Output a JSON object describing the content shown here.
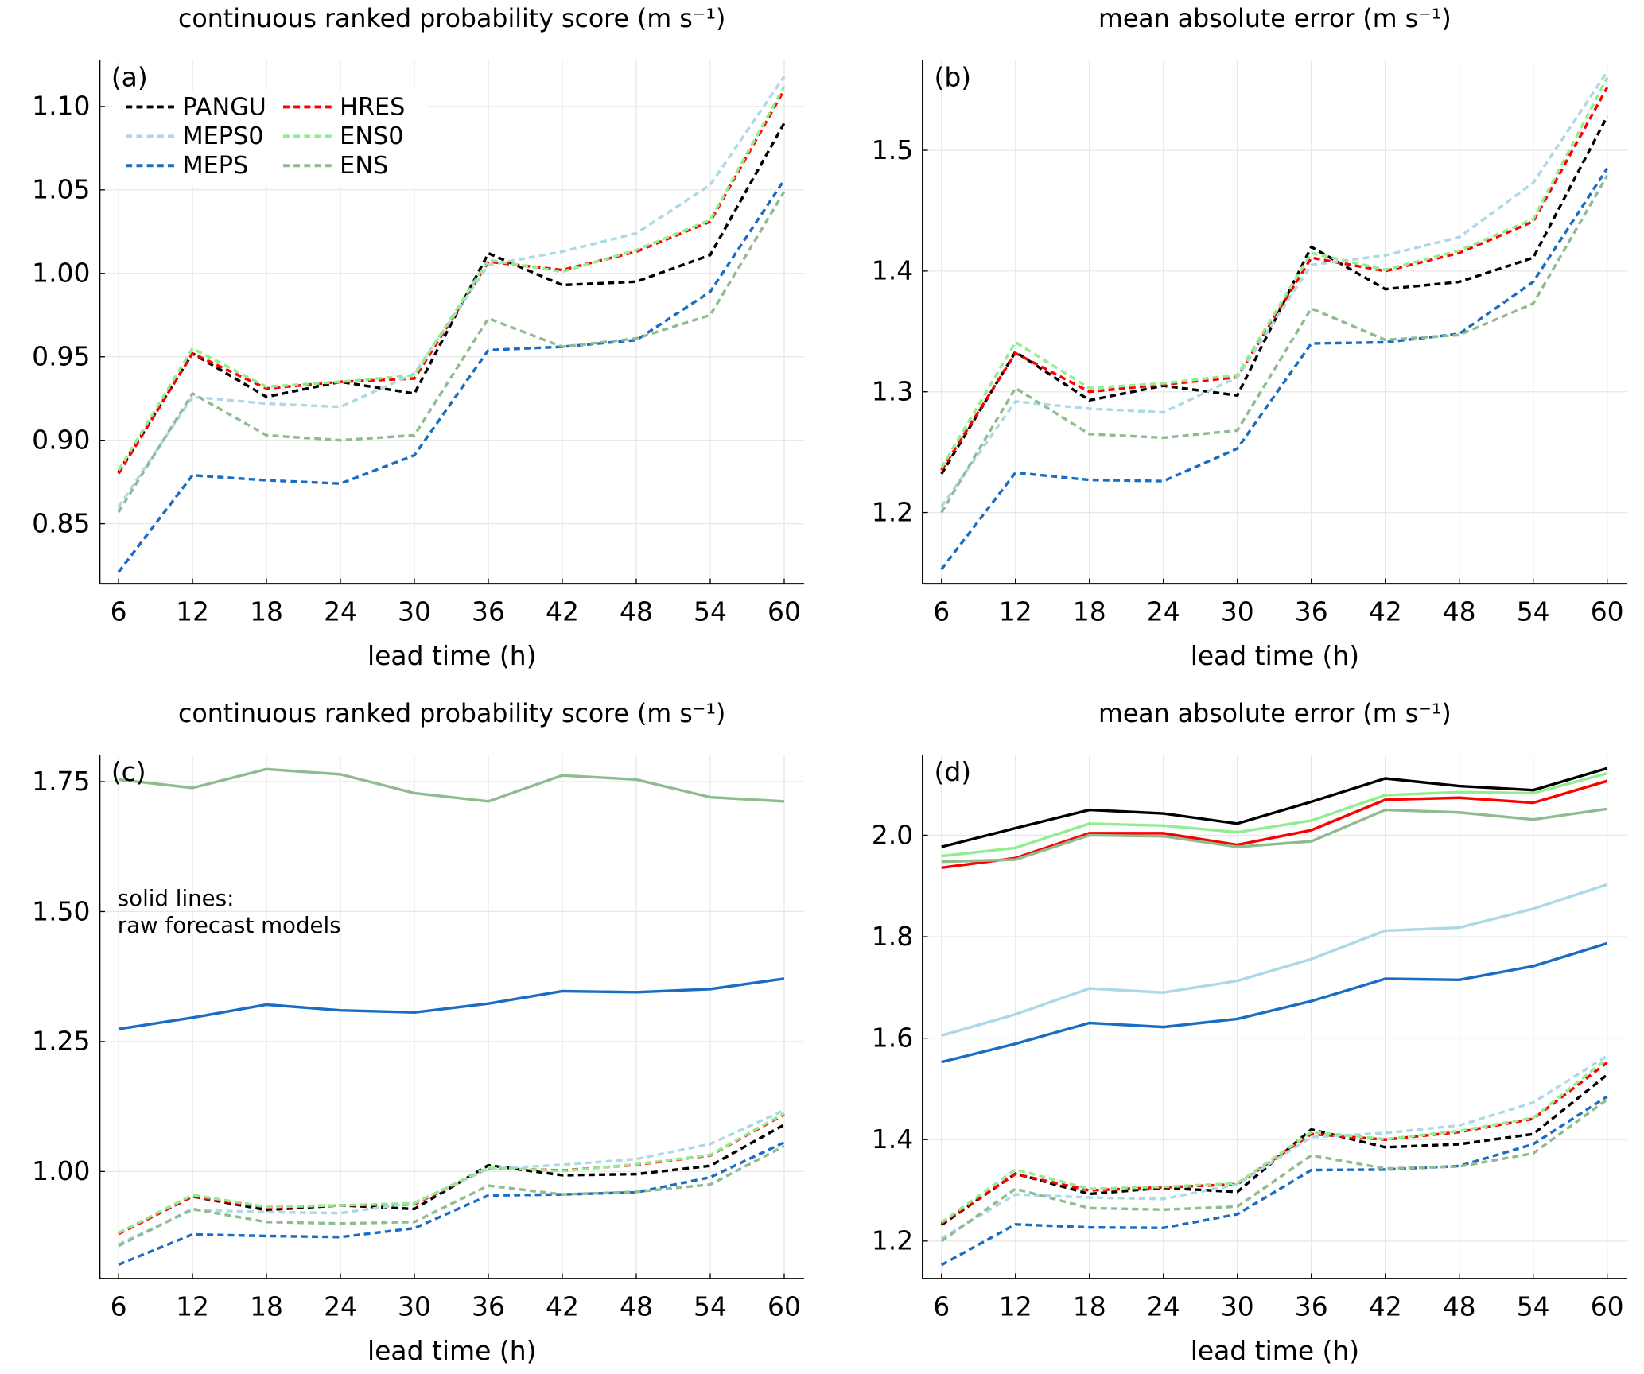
{
  "chart_data": [
    {
      "type": "line",
      "title": "continuous ranked probability score (m s⁻¹)",
      "panel_label": "(a)",
      "x_label": "lead time (h)",
      "x": [
        6,
        12,
        18,
        24,
        30,
        36,
        42,
        48,
        54,
        60
      ],
      "xlim": [
        4.47,
        61.62
      ],
      "xticks": [
        6,
        12,
        18,
        24,
        30,
        36,
        42,
        48,
        54,
        60
      ],
      "ylim": [
        0.814,
        1.128
      ],
      "yticks": [
        0.85,
        {
          "value": 0.9,
          "label": "0.90"
        },
        0.95,
        {
          "value": 1,
          "label": "1.00"
        },
        1.05,
        {
          "value": 1.1,
          "label": "1.10"
        }
      ],
      "grid": true,
      "legend": "top-left",
      "series": [
        {
          "name": "PANGU",
          "color": "#000000",
          "dash": true,
          "values": [
            0.881,
            0.952,
            0.926,
            0.935,
            0.928,
            1.012,
            0.993,
            0.995,
            1.011,
            1.09
          ]
        },
        {
          "name": "HRES",
          "color": "#ff0000",
          "dash": true,
          "values": [
            0.88,
            0.952,
            0.931,
            0.935,
            0.937,
            1.007,
            1.002,
            1.013,
            1.031,
            1.11
          ]
        },
        {
          "name": "MEPS0",
          "color": "#add8e6",
          "dash": true,
          "values": [
            0.86,
            0.926,
            0.922,
            0.92,
            0.94,
            1.005,
            1.013,
            1.024,
            1.053,
            1.118
          ]
        },
        {
          "name": "ENS0",
          "color": "#90ee90",
          "dash": true,
          "values": [
            0.882,
            0.955,
            0.932,
            0.935,
            0.939,
            1.008,
            1.001,
            1.014,
            1.032,
            1.112
          ]
        },
        {
          "name": "MEPS",
          "color": "#1a6dc2",
          "dash": true,
          "values": [
            0.821,
            0.879,
            0.876,
            0.874,
            0.891,
            0.954,
            0.956,
            0.96,
            0.989,
            1.056
          ]
        },
        {
          "name": "ENS",
          "color": "#8fbc8f",
          "dash": true,
          "values": [
            0.857,
            0.928,
            0.903,
            0.9,
            0.903,
            0.973,
            0.956,
            0.961,
            0.975,
            1.049
          ]
        }
      ]
    },
    {
      "type": "line",
      "title": "mean absolute error (m s⁻¹)",
      "panel_label": "(b)",
      "x_label": "lead time (h)",
      "x": [
        6,
        12,
        18,
        24,
        30,
        36,
        42,
        48,
        54,
        60
      ],
      "xlim": [
        4.47,
        61.62
      ],
      "xticks": [
        6,
        12,
        18,
        24,
        30,
        36,
        42,
        48,
        54,
        60
      ],
      "ylim": [
        1.141,
        1.575
      ],
      "yticks": [
        1.2,
        1.3,
        1.4,
        1.5
      ],
      "grid": true,
      "series": [
        {
          "color": "#000000",
          "dash": true,
          "values": [
            1.232,
            1.333,
            1.293,
            1.305,
            1.297,
            1.42,
            1.385,
            1.391,
            1.411,
            1.528
          ]
        },
        {
          "color": "#ff0000",
          "dash": true,
          "values": [
            1.235,
            1.332,
            1.3,
            1.306,
            1.312,
            1.411,
            1.4,
            1.415,
            1.441,
            1.552
          ]
        },
        {
          "color": "#add8e6",
          "dash": true,
          "values": [
            1.205,
            1.292,
            1.286,
            1.283,
            1.312,
            1.405,
            1.413,
            1.428,
            1.473,
            1.565
          ]
        },
        {
          "color": "#90ee90",
          "dash": true,
          "values": [
            1.237,
            1.341,
            1.303,
            1.307,
            1.314,
            1.415,
            1.401,
            1.417,
            1.443,
            1.56
          ]
        },
        {
          "color": "#1a6dc2",
          "dash": true,
          "values": [
            1.153,
            1.233,
            1.227,
            1.226,
            1.253,
            1.34,
            1.341,
            1.348,
            1.391,
            1.485
          ]
        },
        {
          "color": "#8fbc8f",
          "dash": true,
          "values": [
            1.2,
            1.303,
            1.265,
            1.262,
            1.268,
            1.369,
            1.343,
            1.347,
            1.373,
            1.479
          ]
        }
      ]
    },
    {
      "type": "line",
      "title": "continuous ranked probability score (m s⁻¹)",
      "panel_label": "(c)",
      "x_label": "lead time (h)",
      "annotation": [
        "solid lines:",
        "raw forecast models"
      ],
      "x": [
        6,
        12,
        18,
        24,
        30,
        36,
        42,
        48,
        54,
        60
      ],
      "xlim": [
        4.47,
        61.62
      ],
      "xticks": [
        6,
        12,
        18,
        24,
        30,
        36,
        42,
        48,
        54,
        60
      ],
      "ylim": [
        0.794,
        1.802
      ],
      "yticks": [
        {
          "value": 1,
          "label": "1.00"
        },
        1.25,
        {
          "value": 1.5,
          "label": "1.50"
        },
        1.75
      ],
      "grid": true,
      "series": [
        {
          "color": "#000000",
          "dash": true,
          "values": [
            0.881,
            0.952,
            0.926,
            0.935,
            0.928,
            1.012,
            0.993,
            0.995,
            1.011,
            1.09
          ]
        },
        {
          "color": "#ff0000",
          "dash": true,
          "values": [
            0.88,
            0.952,
            0.931,
            0.935,
            0.937,
            1.007,
            1.002,
            1.013,
            1.031,
            1.11
          ]
        },
        {
          "color": "#add8e6",
          "dash": true,
          "values": [
            0.86,
            0.926,
            0.922,
            0.92,
            0.94,
            1.005,
            1.013,
            1.024,
            1.053,
            1.118
          ]
        },
        {
          "color": "#90ee90",
          "dash": true,
          "values": [
            0.882,
            0.955,
            0.932,
            0.935,
            0.939,
            1.008,
            1.001,
            1.014,
            1.032,
            1.112
          ]
        },
        {
          "color": "#1a6dc2",
          "dash": true,
          "values": [
            0.821,
            0.879,
            0.876,
            0.874,
            0.891,
            0.954,
            0.956,
            0.96,
            0.989,
            1.056
          ]
        },
        {
          "color": "#8fbc8f",
          "dash": true,
          "values": [
            0.857,
            0.928,
            0.903,
            0.9,
            0.903,
            0.973,
            0.956,
            0.961,
            0.975,
            1.049
          ]
        },
        {
          "color": "#8fbc8f",
          "dash": false,
          "values": [
            1.754,
            1.738,
            1.774,
            1.764,
            1.728,
            1.712,
            1.762,
            1.754,
            1.72,
            1.712
          ]
        },
        {
          "color": "#1a6dc2",
          "dash": false,
          "values": [
            1.274,
            1.296,
            1.321,
            1.31,
            1.306,
            1.323,
            1.347,
            1.345,
            1.351,
            1.371
          ]
        }
      ]
    },
    {
      "type": "line",
      "title": "mean absolute error (m s⁻¹)",
      "panel_label": "(d)",
      "x_label": "lead time (h)",
      "x": [
        6,
        12,
        18,
        24,
        30,
        36,
        42,
        48,
        54,
        60
      ],
      "xlim": [
        4.47,
        61.62
      ],
      "xticks": [
        6,
        12,
        18,
        24,
        30,
        36,
        42,
        48,
        54,
        60
      ],
      "ylim": [
        1.126,
        2.159
      ],
      "yticks": [
        1.2,
        1.4,
        1.6,
        1.8,
        {
          "value": 2,
          "label": "2.0"
        }
      ],
      "grid": true,
      "series": [
        {
          "color": "#000000",
          "dash": true,
          "values": [
            1.232,
            1.333,
            1.293,
            1.305,
            1.297,
            1.42,
            1.385,
            1.391,
            1.411,
            1.528
          ]
        },
        {
          "color": "#ff0000",
          "dash": true,
          "values": [
            1.235,
            1.332,
            1.3,
            1.306,
            1.312,
            1.411,
            1.4,
            1.415,
            1.441,
            1.552
          ]
        },
        {
          "color": "#add8e6",
          "dash": true,
          "values": [
            1.205,
            1.292,
            1.286,
            1.283,
            1.312,
            1.405,
            1.413,
            1.428,
            1.473,
            1.565
          ]
        },
        {
          "color": "#90ee90",
          "dash": true,
          "values": [
            1.237,
            1.341,
            1.303,
            1.307,
            1.314,
            1.415,
            1.401,
            1.417,
            1.443,
            1.56
          ]
        },
        {
          "color": "#1a6dc2",
          "dash": true,
          "values": [
            1.153,
            1.233,
            1.227,
            1.226,
            1.253,
            1.34,
            1.341,
            1.348,
            1.391,
            1.485
          ]
        },
        {
          "color": "#8fbc8f",
          "dash": true,
          "values": [
            1.2,
            1.303,
            1.265,
            1.262,
            1.268,
            1.369,
            1.343,
            1.347,
            1.373,
            1.479
          ]
        },
        {
          "color": "#000000",
          "dash": false,
          "values": [
            1.977,
            2.014,
            2.05,
            2.043,
            2.023,
            2.066,
            2.112,
            2.097,
            2.089,
            2.132
          ]
        },
        {
          "color": "#90ee90",
          "dash": false,
          "values": [
            1.959,
            1.975,
            2.023,
            2.019,
            2.006,
            2.029,
            2.079,
            2.085,
            2.083,
            2.122
          ]
        },
        {
          "color": "#ff0000",
          "dash": false,
          "values": [
            1.936,
            1.955,
            2.004,
            2.004,
            1.981,
            2.01,
            2.07,
            2.074,
            2.064,
            2.107
          ]
        },
        {
          "color": "#8fbc8f",
          "dash": false,
          "values": [
            1.948,
            1.952,
            2.0,
            1.998,
            1.977,
            1.988,
            2.05,
            2.045,
            2.031,
            2.052
          ]
        },
        {
          "color": "#add8e6",
          "dash": false,
          "values": [
            1.605,
            1.647,
            1.698,
            1.69,
            1.713,
            1.756,
            1.812,
            1.818,
            1.855,
            1.903
          ]
        },
        {
          "color": "#1a6dc2",
          "dash": false,
          "values": [
            1.553,
            1.589,
            1.63,
            1.622,
            1.638,
            1.673,
            1.717,
            1.715,
            1.742,
            1.787
          ]
        }
      ]
    }
  ]
}
